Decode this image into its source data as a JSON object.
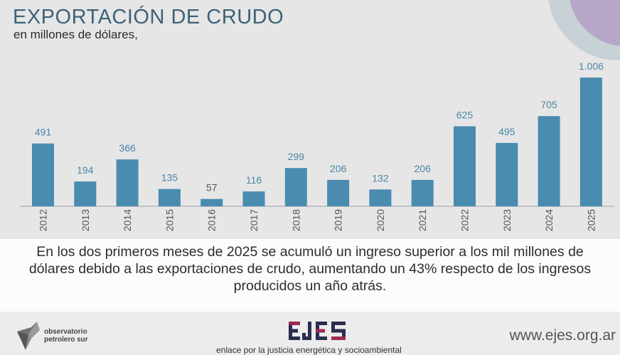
{
  "header": {
    "title": "EXPORTACIÓN DE CRUDO",
    "subtitle": "en millones de dólares,"
  },
  "chart_data": {
    "type": "bar",
    "categories": [
      "2012",
      "2013",
      "2014",
      "2015",
      "2016",
      "2017",
      "2018",
      "2019",
      "2020",
      "2021",
      "2022",
      "2023",
      "2024",
      "2025"
    ],
    "values": [
      491,
      194,
      366,
      135,
      57,
      116,
      299,
      206,
      132,
      206,
      625,
      495,
      705,
      1006
    ],
    "value_labels": [
      "491",
      "194",
      "366",
      "135",
      "57",
      "116",
      "299",
      "206",
      "132",
      "206",
      "625",
      "495",
      "705",
      "1.006"
    ],
    "ylim": [
      0,
      1006
    ],
    "grid": false,
    "legend": "none",
    "bar_color": "#4a8bb0",
    "label_color": "#4a86a8"
  },
  "description": {
    "text": "En los dos primeros meses de 2025 se acumuló un ingreso superior a los mil millones de dólares debido a las exportaciones de crudo, aumentando un 43% respecto de los ingresos producidos un año atrás."
  },
  "footer": {
    "ops_line1": "observatorio",
    "ops_line2": "petrolero sur",
    "ejes_logo": "EJES",
    "tagline": "enlace por la justicia energética y socioambiental",
    "website": "www.ejes.org.ar"
  },
  "colors": {
    "title": "#3d6278",
    "background": "#e6e6e6",
    "description_bg": "#fcfcfc",
    "ejes_dark": "#2b2d4e",
    "ejes_accent": "#9b2b50"
  }
}
